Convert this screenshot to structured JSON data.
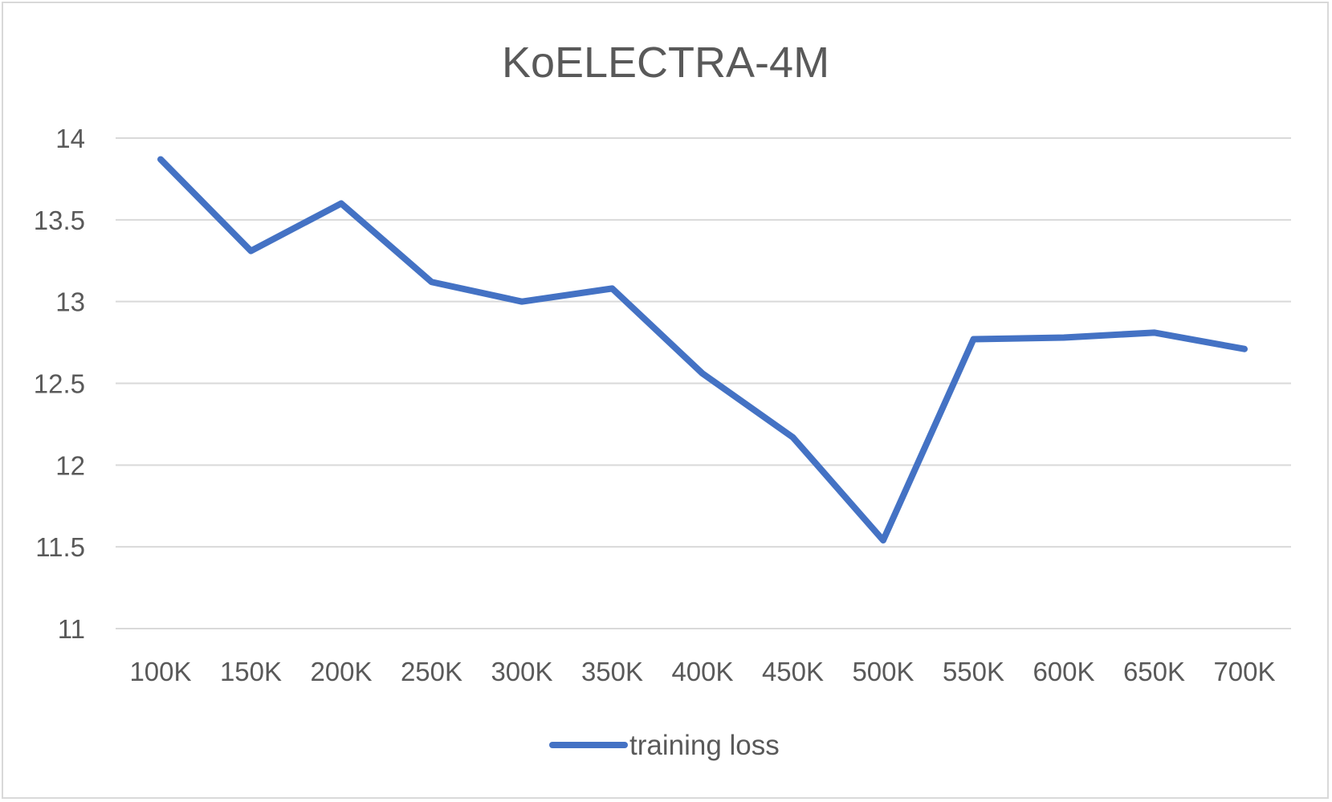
{
  "chart_data": {
    "type": "line",
    "title": "KoELECTRA-4M",
    "categories": [
      "100K",
      "150K",
      "200K",
      "250K",
      "300K",
      "350K",
      "400K",
      "450K",
      "500K",
      "550K",
      "600K",
      "650K",
      "700K"
    ],
    "series": [
      {
        "name": "training loss",
        "color": "#4472c4",
        "values": [
          13.87,
          13.31,
          13.6,
          13.12,
          13.0,
          13.08,
          12.56,
          12.17,
          11.54,
          12.77,
          12.78,
          12.81,
          12.71
        ]
      }
    ],
    "yticks": [
      "11",
      "11.5",
      "12",
      "12.5",
      "13",
      "13.5",
      "14"
    ],
    "ylim": [
      11,
      14
    ],
    "grid": true,
    "legend_position": "bottom"
  }
}
